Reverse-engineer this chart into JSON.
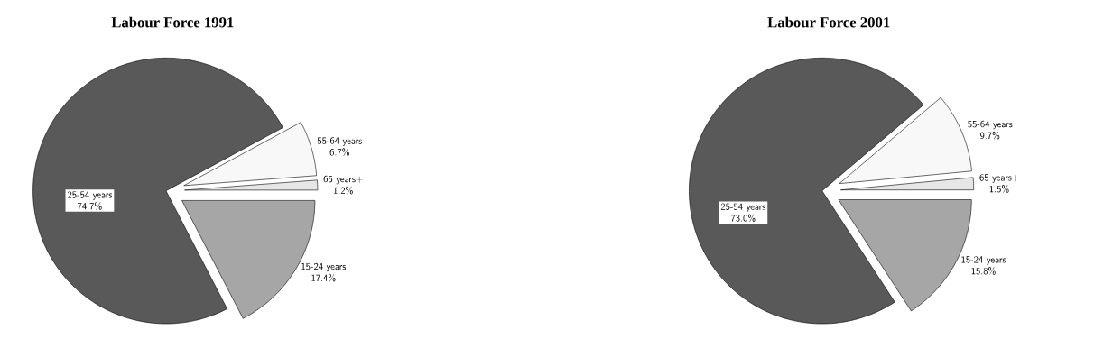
{
  "chart_data": [
    {
      "type": "pie",
      "title": "Labour Force 1991",
      "categories": [
        "65 years+",
        "55-64 years",
        "25-54 years",
        "15-24 years"
      ],
      "values": [
        1.2,
        6.7,
        74.7,
        17.4
      ],
      "value_labels": [
        "1.2%",
        "6.7%",
        "74.7%",
        "17.4%"
      ],
      "colors": [
        "#e6e6e6",
        "#f8f8f8",
        "#595959",
        "#a6a6a6"
      ]
    },
    {
      "type": "pie",
      "title": "Labour Force 2001",
      "categories": [
        "65 years+",
        "55-64 years",
        "25-54 years",
        "15-24 years"
      ],
      "values": [
        1.5,
        9.7,
        73.0,
        15.8
      ],
      "value_labels": [
        "1.5%",
        "9.7%",
        "73.0%",
        "15.8%"
      ],
      "colors": [
        "#e6e6e6",
        "#f8f8f8",
        "#595959",
        "#a6a6a6"
      ]
    }
  ]
}
